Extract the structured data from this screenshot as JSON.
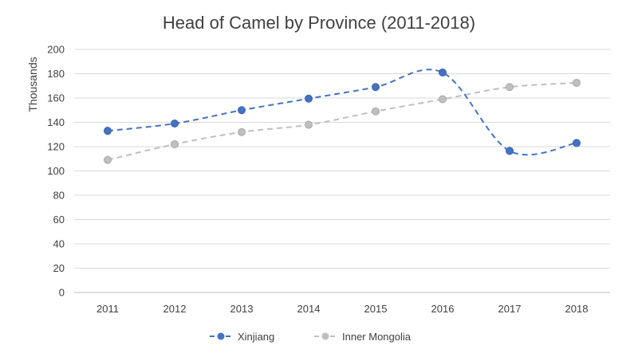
{
  "chart_data": {
    "type": "line",
    "title": "Head of Camel by Province (2011-2018)",
    "ylabel": "Thousands",
    "xlabel": "",
    "ylim": [
      0,
      200
    ],
    "ytick_step": 20,
    "grid": true,
    "legend_position": "bottom",
    "categories": [
      "2011",
      "2012",
      "2013",
      "2014",
      "2015",
      "2016",
      "2017",
      "2018"
    ],
    "series": [
      {
        "name": "Xinjiang",
        "color": "#4472c4",
        "values": [
          133,
          139,
          150,
          159.5,
          169,
          181,
          116.5,
          123
        ]
      },
      {
        "name": "Inner Mongolia",
        "color": "#bfbfbf",
        "values": [
          109,
          122,
          132,
          138,
          149,
          159,
          169,
          172.5
        ]
      }
    ]
  }
}
